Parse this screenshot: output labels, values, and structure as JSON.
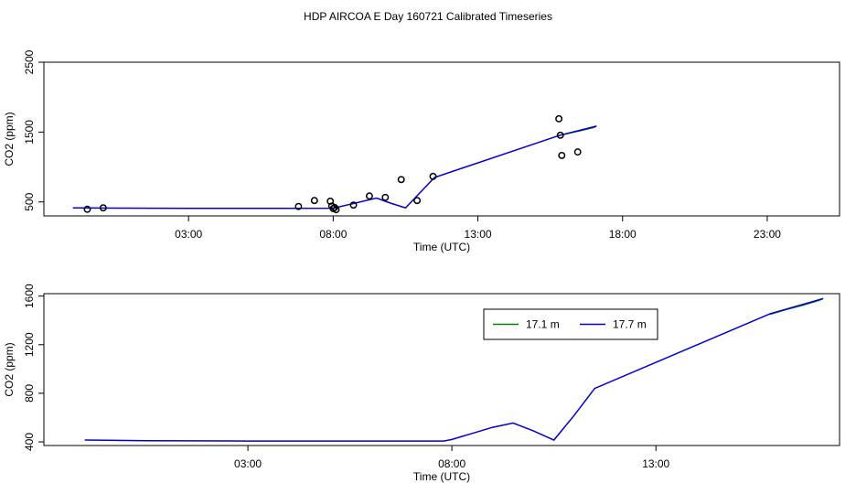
{
  "title": "HDP AIRCOA E  Day 160721  Calibrated Timeseries",
  "chart_data": [
    {
      "type": "scatter+line",
      "xlabel": "Time (UTC)",
      "ylabel": "CO2 (ppm)",
      "xlim": [
        -2.0,
        25.5
      ],
      "ylim": [
        300,
        2500
      ],
      "xticks": [
        3,
        8,
        13,
        18,
        23
      ],
      "xtick_labels": [
        "03:00",
        "08:00",
        "13:00",
        "18:00",
        "23:00"
      ],
      "yticks": [
        500,
        1500,
        2500
      ],
      "ytick_labels": [
        "500",
        "1500",
        "2500"
      ],
      "points": [
        {
          "x": -0.5,
          "y": 395
        },
        {
          "x": 0.05,
          "y": 415
        },
        {
          "x": 6.8,
          "y": 435
        },
        {
          "x": 7.35,
          "y": 520
        },
        {
          "x": 7.9,
          "y": 510
        },
        {
          "x": 7.95,
          "y": 440
        },
        {
          "x": 8.0,
          "y": 405
        },
        {
          "x": 8.05,
          "y": 420
        },
        {
          "x": 8.1,
          "y": 390
        },
        {
          "x": 8.7,
          "y": 455
        },
        {
          "x": 9.25,
          "y": 585
        },
        {
          "x": 9.8,
          "y": 565
        },
        {
          "x": 10.35,
          "y": 820
        },
        {
          "x": 10.9,
          "y": 520
        },
        {
          "x": 11.45,
          "y": 865
        },
        {
          "x": 15.8,
          "y": 1690
        },
        {
          "x": 15.85,
          "y": 1455
        },
        {
          "x": 15.9,
          "y": 1165
        },
        {
          "x": 16.45,
          "y": 1215
        }
      ],
      "series": [
        {
          "name": "17.1 m",
          "color": "#008000",
          "x": [
            15.8,
            16.2,
            16.6,
            17.0,
            17.1
          ],
          "y": [
            1450,
            1490,
            1525,
            1565,
            1585
          ]
        },
        {
          "name": "17.7 m",
          "color": "#0000cc",
          "x": [
            -1.0,
            0.5,
            3.0,
            6.0,
            8.0,
            9.5,
            10.0,
            10.5,
            11.5,
            15.8,
            17.1
          ],
          "y": [
            415,
            412,
            408,
            408,
            410,
            555,
            480,
            415,
            850,
            1450,
            1585
          ]
        }
      ]
    },
    {
      "type": "line",
      "xlabel": "Time (UTC)",
      "ylabel": "CO2 (ppm)",
      "xlim": [
        -2.0,
        17.5
      ],
      "ylim": [
        370,
        1620
      ],
      "xticks": [
        3,
        8,
        13
      ],
      "xtick_labels": [
        "03:00",
        "08:00",
        "13:00"
      ],
      "yticks": [
        400,
        800,
        1200,
        1600
      ],
      "ytick_labels": [
        "400",
        "800",
        "1200",
        "1600"
      ],
      "legend": "top-right",
      "series": [
        {
          "name": "17.1 m",
          "color": "#008000",
          "x": [
            15.8,
            16.2,
            16.6,
            17.0,
            17.1
          ],
          "y": [
            1450,
            1490,
            1525,
            1565,
            1580
          ]
        },
        {
          "name": "17.7 m",
          "color": "#0000cc",
          "x": [
            -1.0,
            0.5,
            3.0,
            6.0,
            7.8,
            8.0,
            9.0,
            9.5,
            10.0,
            10.5,
            11.0,
            11.5,
            15.8,
            17.1
          ],
          "y": [
            415,
            410,
            407,
            407,
            407,
            420,
            520,
            555,
            490,
            415,
            620,
            840,
            1455,
            1580
          ]
        }
      ]
    }
  ]
}
